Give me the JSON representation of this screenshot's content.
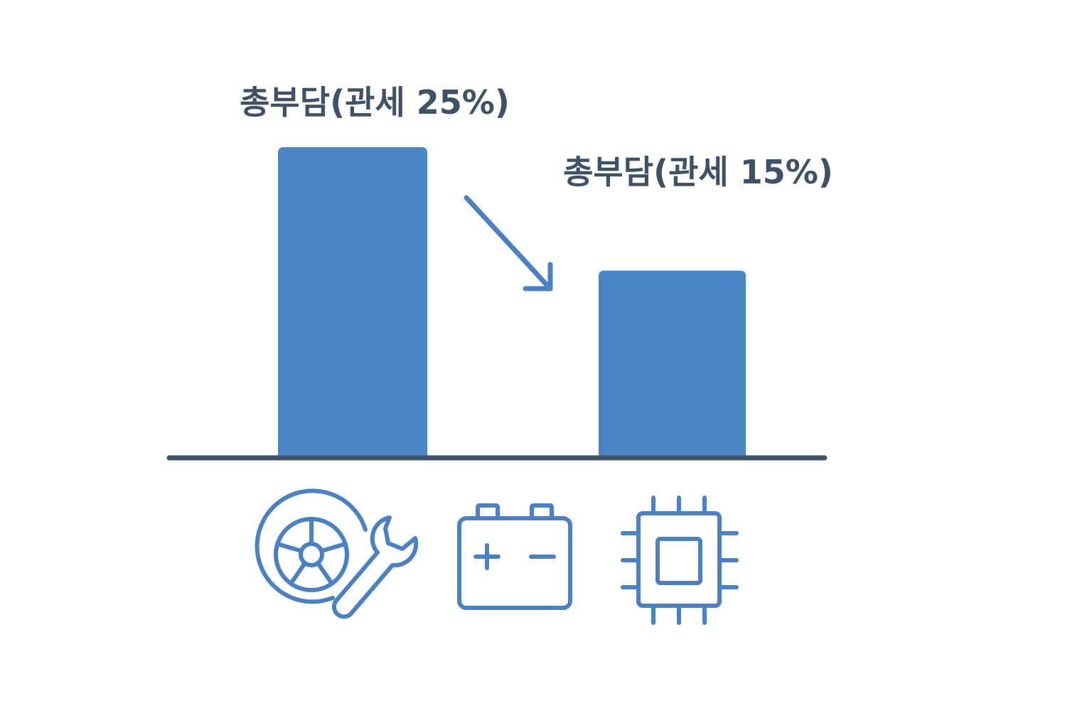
{
  "chart_data": {
    "type": "bar",
    "categories": [
      "auto-parts",
      "battery",
      "semiconductor"
    ],
    "bars": [
      {
        "label": "총부담(관세 25%)",
        "value": 25
      },
      {
        "label": "총부담(관세 15%)",
        "value": 15
      }
    ],
    "ylim": [
      0,
      25
    ],
    "grid": false,
    "annotation": "arrow-down-right"
  },
  "icons": [
    "tire-wrench-icon",
    "battery-icon",
    "chip-icon"
  ],
  "colors": {
    "bar": "#4a86c5",
    "label": "#3f5166",
    "baseline": "#3f5166",
    "icon": "#4a80c4"
  }
}
